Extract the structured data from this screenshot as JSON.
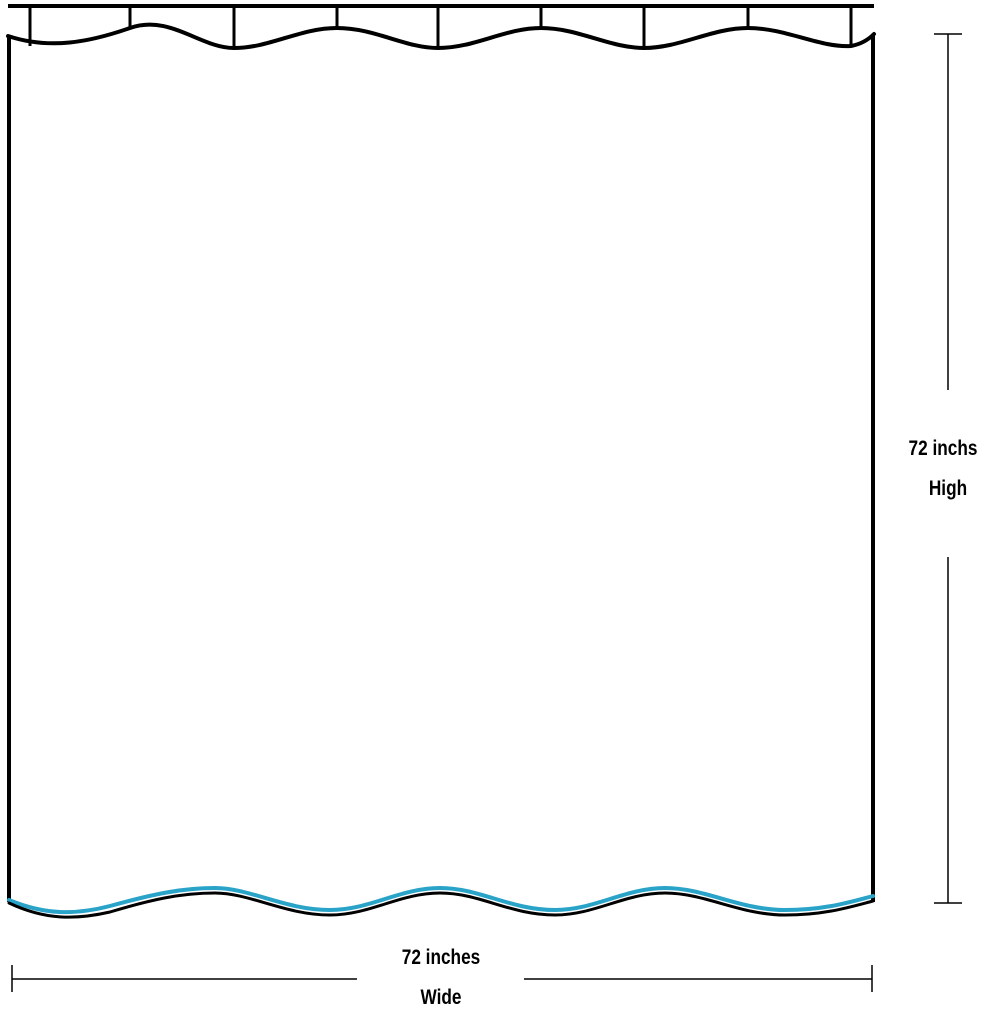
{
  "dimensions": {
    "height": {
      "value": "72 inchs",
      "label": "High"
    },
    "width": {
      "value": "72 inches",
      "label": "Wide"
    }
  },
  "colors": {
    "outline": "#000000",
    "hem_accent": "#2aa3c8",
    "background": "#ffffff"
  }
}
